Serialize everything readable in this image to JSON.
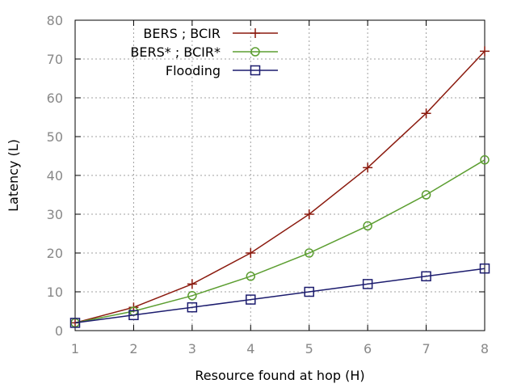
{
  "chart_data": {
    "type": "line",
    "xlabel": "Resource found at hop (H)",
    "ylabel": "Latency (L)",
    "x": [
      1,
      2,
      3,
      4,
      5,
      6,
      7,
      8
    ],
    "xlim": [
      1,
      8
    ],
    "ylim": [
      0,
      80
    ],
    "xticks": [
      1,
      2,
      3,
      4,
      5,
      6,
      7,
      8
    ],
    "yticks": [
      0,
      10,
      20,
      30,
      40,
      50,
      60,
      70,
      80
    ],
    "grid": true,
    "legend_position": "top-left",
    "series": [
      {
        "name": "BERS ; BCIR",
        "values": [
          2,
          6,
          12,
          20,
          30,
          42,
          56,
          72
        ],
        "color": "#8b1a0e",
        "marker": "plus"
      },
      {
        "name": "BERS* ; BCIR*",
        "values": [
          2,
          5,
          9,
          14,
          20,
          27,
          35,
          44
        ],
        "color": "#5c9e31",
        "marker": "circle"
      },
      {
        "name": "Flooding",
        "values": [
          2,
          4,
          6,
          8,
          10,
          12,
          14,
          16
        ],
        "color": "#1c1c6e",
        "marker": "square"
      }
    ]
  }
}
